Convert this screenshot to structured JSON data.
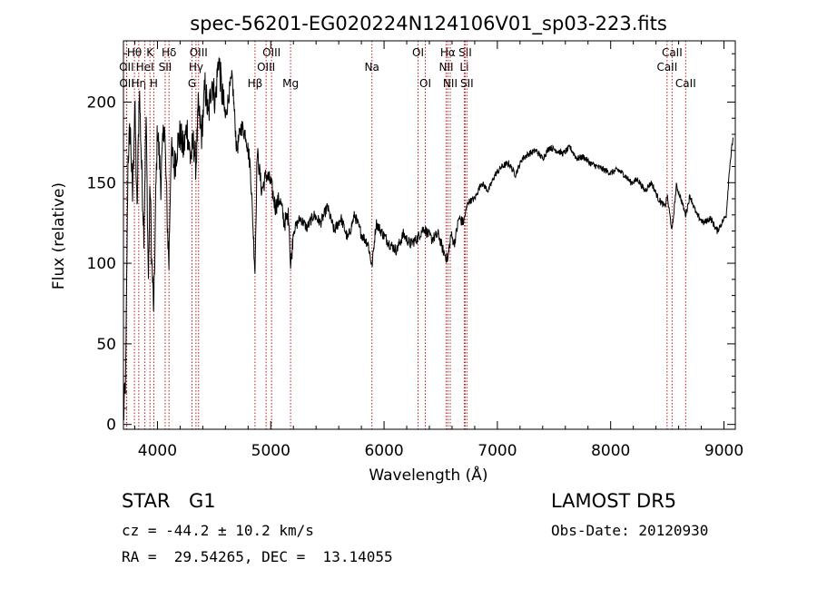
{
  "chart_data": {
    "type": "line",
    "title": "spec-56201-EG020224N124106V01_sp03-223.fits",
    "xlabel": "Wavelength (Å)",
    "ylabel": "Flux (relative)",
    "xlim": [
      3700,
      9100
    ],
    "ylim": [
      -3,
      238
    ],
    "xticks": [
      4000,
      5000,
      6000,
      7000,
      8000,
      9000
    ],
    "yticks": [
      0,
      50,
      100,
      150,
      200
    ],
    "grid": false,
    "series": [
      {
        "x": [
          3700,
          3720,
          3740,
          3760,
          3780,
          3800,
          3820,
          3840,
          3860,
          3880,
          3900,
          3920,
          3935,
          3950,
          3968,
          3985,
          4000,
          4030,
          4060,
          4090,
          4101,
          4120,
          4150,
          4180,
          4200,
          4230,
          4260,
          4290,
          4320,
          4340,
          4360,
          4390,
          4420,
          4450,
          4480,
          4510,
          4540,
          4570,
          4600,
          4630,
          4660,
          4700,
          4740,
          4780,
          4820,
          4861,
          4880,
          4920,
          4960,
          5000,
          5040,
          5080,
          5120,
          5160,
          5175,
          5200,
          5260,
          5320,
          5380,
          5440,
          5500,
          5560,
          5620,
          5680,
          5740,
          5800,
          5860,
          5893,
          5930,
          5990,
          6050,
          6110,
          6170,
          6230,
          6290,
          6350,
          6420,
          6480,
          6520,
          6563,
          6590,
          6620,
          6660,
          6700,
          6740,
          6800,
          6860,
          6920,
          6980,
          7040,
          7100,
          7160,
          7220,
          7280,
          7340,
          7400,
          7460,
          7520,
          7580,
          7640,
          7700,
          7760,
          7820,
          7880,
          7940,
          8000,
          8060,
          8120,
          8180,
          8240,
          8300,
          8360,
          8420,
          8480,
          8498,
          8542,
          8580,
          8620,
          8662,
          8700,
          8760,
          8820,
          8880,
          8940,
          8980,
          9020,
          9050,
          9080
        ],
        "values": [
          3,
          30,
          165,
          185,
          140,
          200,
          130,
          210,
          160,
          120,
          190,
          90,
          150,
          100,
          70,
          140,
          185,
          150,
          190,
          120,
          100,
          170,
          160,
          175,
          180,
          170,
          185,
          165,
          175,
          160,
          195,
          180,
          210,
          190,
          215,
          200,
          228,
          205,
          190,
          205,
          215,
          170,
          185,
          180,
          160,
          95,
          170,
          145,
          155,
          150,
          135,
          140,
          125,
          130,
          97,
          120,
          128,
          122,
          130,
          125,
          135,
          120,
          128,
          115,
          130,
          118,
          112,
          98,
          125,
          118,
          112,
          108,
          118,
          112,
          115,
          122,
          115,
          118,
          108,
          102,
          118,
          112,
          128,
          125,
          138,
          140,
          150,
          145,
          155,
          160,
          162,
          155,
          165,
          168,
          170,
          165,
          172,
          170,
          168,
          172,
          165,
          166,
          162,
          160,
          158,
          156,
          158,
          155,
          150,
          152,
          145,
          150,
          140,
          135,
          142,
          120,
          148,
          140,
          130,
          142,
          130,
          125,
          128,
          120,
          125,
          130,
          160,
          178
        ],
        "range_note": ""
      }
    ],
    "lines": [
      {
        "label": "Hθ",
        "x": 3797,
        "row": 1
      },
      {
        "label": "OII",
        "x": 3727,
        "row": 2
      },
      {
        "label": "OII",
        "x": 3729,
        "row": 3
      },
      {
        "label": "Hη",
        "x": 3835,
        "row": 3
      },
      {
        "label": "K",
        "x": 3934,
        "row": 1
      },
      {
        "label": "HeI",
        "x": 3889,
        "row": 2
      },
      {
        "label": "H",
        "x": 3968,
        "row": 3
      },
      {
        "label": "Hδ",
        "x": 4102,
        "row": 1
      },
      {
        "label": "SII",
        "x": 4068,
        "row": 2
      },
      {
        "label": "OIII",
        "x": 4363,
        "row": 1
      },
      {
        "label": "Hγ",
        "x": 4340,
        "row": 2
      },
      {
        "label": "G",
        "x": 4305,
        "row": 3
      },
      {
        "label": "OIII",
        "x": 5007,
        "row": 1
      },
      {
        "label": "OIII",
        "x": 4959,
        "row": 2
      },
      {
        "label": "Hβ",
        "x": 4861,
        "row": 3
      },
      {
        "label": "Mg",
        "x": 5175,
        "row": 3
      },
      {
        "label": "Na",
        "x": 5893,
        "row": 2
      },
      {
        "label": "OI",
        "x": 6300,
        "row": 1
      },
      {
        "label": "OI",
        "x": 6364,
        "row": 3
      },
      {
        "label": "Hα",
        "x": 6563,
        "row": 1
      },
      {
        "label": "SII",
        "x": 6716,
        "row": 1
      },
      {
        "label": "NII",
        "x": 6548,
        "row": 2
      },
      {
        "label": "Li",
        "x": 6708,
        "row": 2
      },
      {
        "label": "NII",
        "x": 6584,
        "row": 3
      },
      {
        "label": "SII",
        "x": 6731,
        "row": 3
      },
      {
        "label": "CaII",
        "x": 8542,
        "row": 1
      },
      {
        "label": "CaII",
        "x": 8498,
        "row": 2
      },
      {
        "label": "CaII",
        "x": 8662,
        "row": 3
      }
    ]
  },
  "footer": {
    "object_type": "STAR",
    "subclass": "G1",
    "survey": "LAMOST DR5",
    "cz": "cz = -44.2 ± 10.2 km/s",
    "obs_date": "Obs-Date: 20120930",
    "radec": "RA =  29.54265, DEC =  13.14055"
  }
}
